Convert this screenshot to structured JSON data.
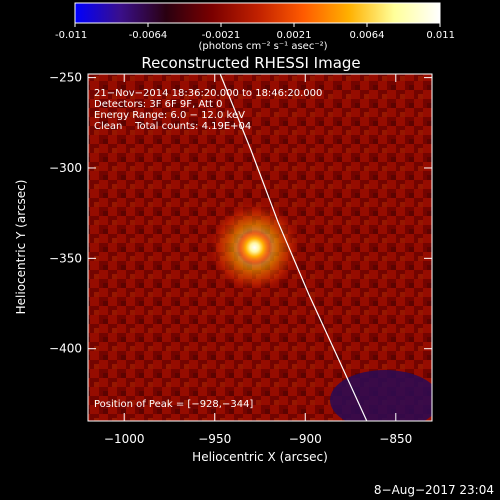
{
  "colorbar": {
    "ticks": [
      "-0.011",
      "-0.0064",
      "-0.0021",
      "0.0021",
      "0.0064",
      "0.011"
    ],
    "unit_label": "(photons cm⁻² s⁻¹ asec⁻²)",
    "colors": [
      "#0000ff",
      "#3a0f8a",
      "#2a0010",
      "#7a0000",
      "#c02000",
      "#ff5a00",
      "#ffb000",
      "#ffff9a",
      "#ffffff"
    ]
  },
  "chart_data": {
    "type": "heatmap",
    "title": "Reconstructed RHESSI Image",
    "xlabel": "Heliocentric X (arcsec)",
    "ylabel": "Heliocentric Y (arcsec)",
    "xlim": [
      -1020,
      -830
    ],
    "ylim": [
      -440,
      -248
    ],
    "xticks": [
      {
        "value": -1000,
        "label": "−1000"
      },
      {
        "value": -950,
        "label": "−950"
      },
      {
        "value": -900,
        "label": "−900"
      },
      {
        "value": -850,
        "label": "−850"
      }
    ],
    "yticks": [
      {
        "value": -250,
        "label": "−250"
      },
      {
        "value": -300,
        "label": "−300"
      },
      {
        "value": -350,
        "label": "−350"
      },
      {
        "value": -400,
        "label": "−400"
      }
    ],
    "peak": {
      "x": -928,
      "y": -344
    },
    "limb_curve": [
      [
        -947,
        -248
      ],
      [
        -930,
        -290
      ],
      [
        -915,
        -330
      ],
      [
        -898,
        -370
      ],
      [
        -882,
        -405
      ],
      [
        -866,
        -440
      ]
    ],
    "info_lines": [
      "21−Nov−2014 18:36:20.000 to 18:46:20.000",
      "Detectors: 3F 6F 9F, Att 0",
      "Energy Range: 6.0 − 12.0 keV",
      "Clean    Total counts: 4.19E+04"
    ],
    "peak_label": "Position of Peak = [−928,−344]"
  },
  "timestamp": "8−Aug−2017 23:04"
}
